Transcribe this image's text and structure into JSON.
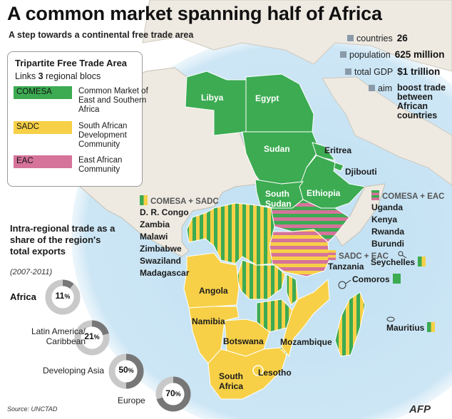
{
  "header": {
    "title": "A common market spanning half of Africa",
    "subtitle": "A step towards a continental free trade area"
  },
  "legend": {
    "title": "Tripartite Free Trade Area",
    "links_prefix": "Links ",
    "links_num": "3",
    "links_suffix": " regional blocs",
    "items": [
      {
        "code": "COMESA",
        "desc": "Common Market of East and Southern Africa",
        "color": "#3cab52"
      },
      {
        "code": "SADC",
        "desc": "South African Development Community",
        "color": "#f7d047"
      },
      {
        "code": "EAC",
        "desc": "East African Community",
        "color": "#d5739a"
      }
    ]
  },
  "stats": {
    "countries_label": "countries",
    "countries_value": "26",
    "population_label": "population",
    "population_value": "625 million",
    "gdp_label": "total GDP",
    "gdp_value": "$1 trillion",
    "aim_label": "aim",
    "aim_value": "boost trade between African countries"
  },
  "map_labels": {
    "libya": "Libya",
    "egypt": "Egypt",
    "sudan": "Sudan",
    "eritrea": "Eritrea",
    "djibouti": "Djibouti",
    "south_sudan_1": "South",
    "south_sudan_2": "Sudan",
    "ethiopia": "Ethiopia",
    "tanzania": "Tanzania",
    "angola": "Angola",
    "namibia": "Namibia",
    "botswana": "Botswana",
    "mozambique": "Mozambique",
    "lesotho": "Lesotho",
    "south_africa_1": "South",
    "south_africa_2": "Africa",
    "seychelles": "Seychelles",
    "comoros": "Comoros",
    "mauritius": "Mauritius"
  },
  "blocs": {
    "comesa_sadc": {
      "title": "COMESA + SADC",
      "countries": [
        "D. R. Congo",
        "Zambia",
        "Malawi",
        "Zimbabwe",
        "Swaziland",
        "Madagascar"
      ]
    },
    "comesa_eac": {
      "title": "COMESA + EAC",
      "countries": [
        "Uganda",
        "Kenya",
        "Rwanda",
        "Burundi"
      ]
    },
    "sadc_eac": {
      "title": "SADC + EAC"
    }
  },
  "trade": {
    "heading": "Intra-regional trade as a share of the region's total exports",
    "period": "(2007-2011)",
    "items": [
      {
        "label": "Africa",
        "value": 11,
        "display": "11"
      },
      {
        "label": "Latin America/ Caribbean",
        "value": 21,
        "display": "21"
      },
      {
        "label": "Developing Asia",
        "value": 50,
        "display": "50"
      },
      {
        "label": "Europe",
        "value": 70,
        "display": "70"
      }
    ],
    "percent_sign": "%",
    "donut_fg": "#777777",
    "donut_bg": "#c9c9c9"
  },
  "footer": {
    "source": "Source: UNCTAD",
    "agency": "AFP"
  },
  "colors": {
    "ocean": "#bcdcf0",
    "land": "#eeeae2",
    "comesa": "#3cab52",
    "sadc": "#f7d047",
    "eac": "#d5739a"
  }
}
